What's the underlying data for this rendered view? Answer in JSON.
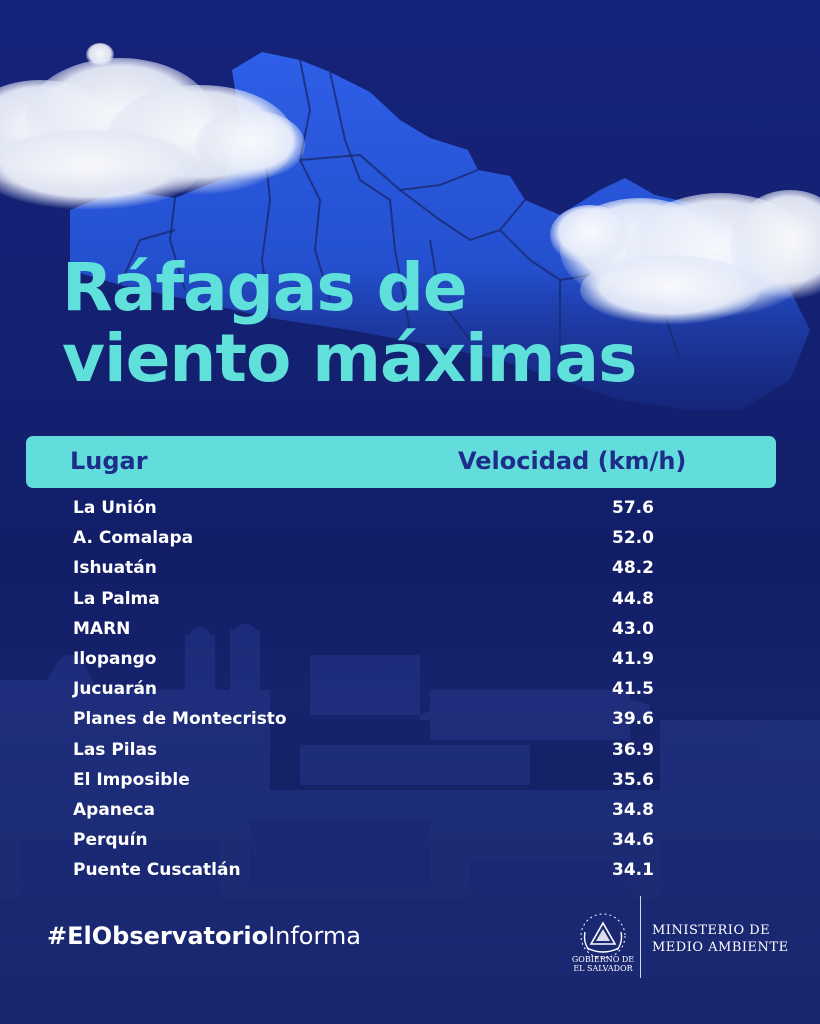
{
  "title": {
    "line1": "Ráfagas de",
    "line2": "viento máximas"
  },
  "colors": {
    "background": "#14206a",
    "accent": "#63dcdc",
    "title": "#5fe0da",
    "map": "#2c5ae0",
    "header_text": "#1d2e8a"
  },
  "table": {
    "headers": {
      "place": "Lugar",
      "speed": "Velocidad (km/h)"
    },
    "rows": [
      {
        "place": "La Unión",
        "speed": "57.6"
      },
      {
        "place": "A. Comalapa",
        "speed": "52.0"
      },
      {
        "place": "Ishuatán",
        "speed": "48.2"
      },
      {
        "place": "La Palma",
        "speed": "44.8"
      },
      {
        "place": "MARN",
        "speed": "43.0"
      },
      {
        "place": "Ilopango",
        "speed": "41.9"
      },
      {
        "place": "Jucuarán",
        "speed": "41.5"
      },
      {
        "place": "Planes de Montecristo",
        "speed": "39.6"
      },
      {
        "place": "Las Pilas",
        "speed": "36.9"
      },
      {
        "place": "El Imposible",
        "speed": "35.6"
      },
      {
        "place": "Apaneca",
        "speed": "34.8"
      },
      {
        "place": "Perquín",
        "speed": "34.6"
      },
      {
        "place": "Puente Cuscatlán",
        "speed": "34.1"
      }
    ]
  },
  "footer": {
    "hashtag": {
      "part1": "#ElObservatorio",
      "part2": "Informa"
    },
    "seal_icon": "el-salvador-coat-of-arms",
    "seal_text": {
      "line1": "GOBIERNO DE",
      "line2": "EL SALVADOR"
    },
    "ministry": {
      "line1": "MINISTERIO DE",
      "line2": "MEDIO AMBIENTE"
    }
  }
}
